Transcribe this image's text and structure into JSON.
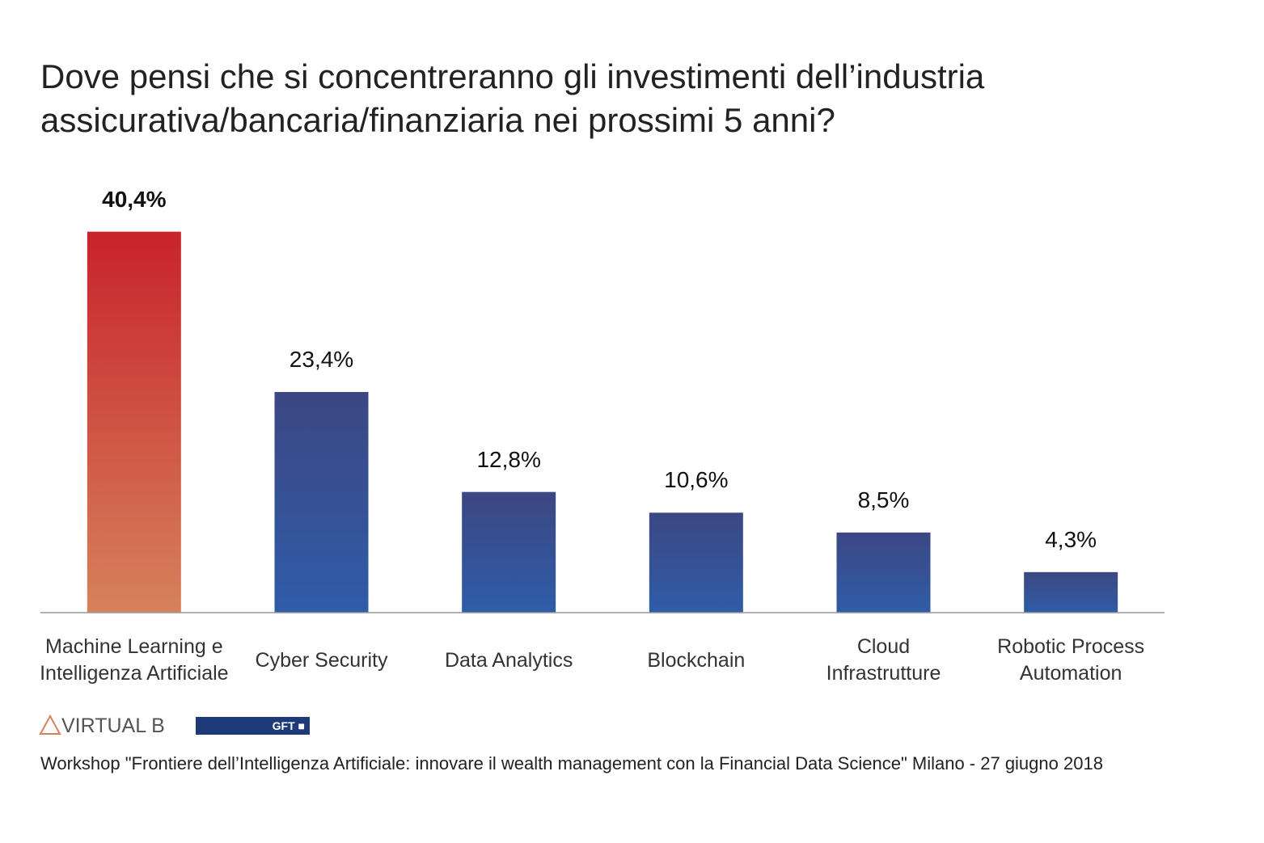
{
  "chart_data": {
    "type": "bar",
    "title": "Dove pensi che si concentreranno gli investimenti dell’industria\nassicurativa/bancaria/finanziaria nei prossimi 5 anni?",
    "categories": [
      "Machine Learning e\nIntelligenza Artificiale",
      "Cyber Security",
      "Data Analytics",
      "Blockchain",
      "Cloud\nInfrastrutture",
      "Robotic Process\nAutomation"
    ],
    "values": [
      40.4,
      23.4,
      12.8,
      10.6,
      8.5,
      4.3
    ],
    "value_labels": [
      "40,4%",
      "23,4%",
      "12,8%",
      "10,6%",
      "8,5%",
      "4,3%"
    ],
    "colors": [
      "#c8232b",
      "#3c4783",
      "#3c4783",
      "#3c4783",
      "#3c4783",
      "#3c4783"
    ],
    "gradient_colors": [
      "#d6825c",
      "#2f5ca8",
      "#2f5ca8",
      "#2f5ca8",
      "#2f5ca8",
      "#2f5ca8"
    ],
    "ylim": [
      0,
      42
    ]
  },
  "logos": [
    "VIRTUAL B",
    "GFT"
  ],
  "footnote": "Workshop \"Frontiere dell’Intelligenza Artificiale: innovare il wealth management con la Financial Data Science\" Milano - 27 giugno 2018"
}
